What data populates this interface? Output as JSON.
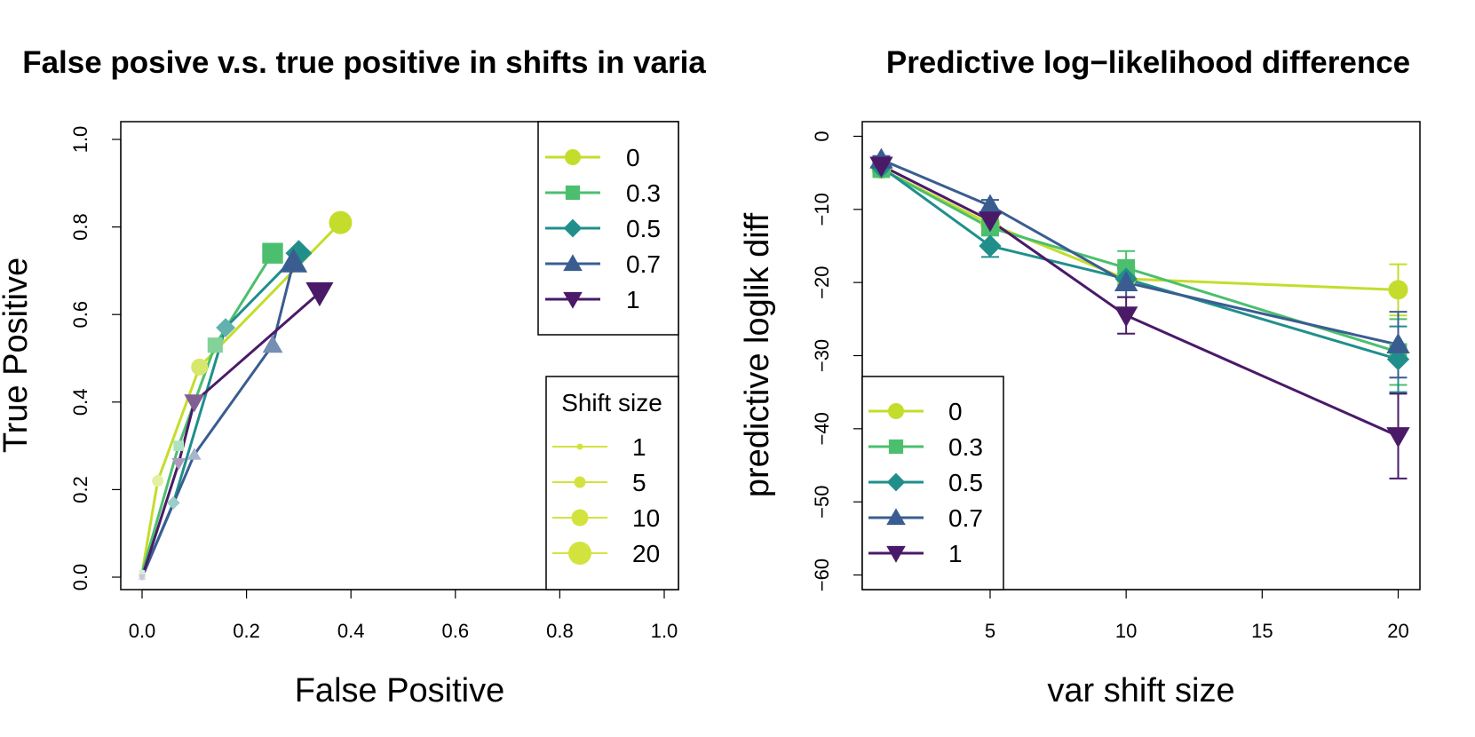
{
  "colors": {
    "s0": "#C4DD2C",
    "s03": "#4CBF6E",
    "s05": "#208F8C",
    "s07": "#3A5D91",
    "s1": "#4A1A68",
    "size_markers": "#D2E33E"
  },
  "chart_data": [
    {
      "type": "line",
      "title": "False posive v.s. true positive in shifts in varia",
      "xlabel": "False Positive",
      "ylabel": "True Positive",
      "xlim": [
        0,
        1
      ],
      "ylim": [
        0,
        1
      ],
      "xticks": [
        "0.0",
        "0.2",
        "0.4",
        "0.6",
        "0.8",
        "1.0"
      ],
      "yticks": [
        "0.0",
        "0.2",
        "0.4",
        "0.6",
        "0.8",
        "1.0"
      ],
      "point_sizes": [
        1,
        5,
        10,
        20
      ],
      "series": [
        {
          "name": "0",
          "marker": "circle",
          "x": [
            0.0,
            0.03,
            0.11,
            0.38
          ],
          "y": [
            0.01,
            0.22,
            0.48,
            0.81
          ]
        },
        {
          "name": "0.3",
          "marker": "square",
          "x": [
            0.0,
            0.07,
            0.14,
            0.25
          ],
          "y": [
            0.01,
            0.3,
            0.53,
            0.74
          ]
        },
        {
          "name": "0.5",
          "marker": "diamond",
          "x": [
            0.0,
            0.06,
            0.16,
            0.3
          ],
          "y": [
            0.0,
            0.17,
            0.57,
            0.74
          ]
        },
        {
          "name": "0.7",
          "marker": "triangle-up",
          "x": [
            0.0,
            0.1,
            0.25,
            0.29
          ],
          "y": [
            0.0,
            0.28,
            0.53,
            0.72
          ]
        },
        {
          "name": "1",
          "marker": "triangle-down",
          "x": [
            0.0,
            0.07,
            0.1,
            0.34
          ],
          "y": [
            0.0,
            0.26,
            0.4,
            0.65
          ]
        }
      ],
      "legend": {
        "placement": "top-right",
        "entries": [
          "0",
          "0.3",
          "0.5",
          "0.7",
          "1"
        ]
      },
      "size_legend": {
        "placement": "bottom-right",
        "title": "Shift size",
        "entries": [
          "1",
          "5",
          "10",
          "20"
        ]
      }
    },
    {
      "type": "line",
      "title": "Predictive log−likelihood difference",
      "xlabel": "var shift size",
      "ylabel": "predictive loglik diff",
      "xlim": [
        0.3,
        20.8
      ],
      "ylim": [
        -62,
        2
      ],
      "xticks": [
        "5",
        "10",
        "15",
        "20"
      ],
      "yticks": [
        "−60",
        "−50",
        "−40",
        "−30",
        "−20",
        "−10",
        "0"
      ],
      "error_bars": true,
      "series": [
        {
          "name": "0",
          "marker": "circle",
          "x": [
            1,
            5,
            10,
            20
          ],
          "y": [
            -4.5,
            -12,
            -19.5,
            -21
          ],
          "err": [
            0.5,
            0.8,
            1.5,
            3.5
          ]
        },
        {
          "name": "0.3",
          "marker": "square",
          "x": [
            1,
            5,
            10,
            20
          ],
          "y": [
            -4.5,
            -12.5,
            -18,
            -29.5
          ],
          "err": [
            0.5,
            0.8,
            2.3,
            4.5
          ]
        },
        {
          "name": "0.5",
          "marker": "diamond",
          "x": [
            1,
            5,
            10,
            20
          ],
          "y": [
            -4.2,
            -15,
            -19.5,
            -30.5
          ],
          "err": [
            0.5,
            1.5,
            1.5,
            4.5
          ]
        },
        {
          "name": "0.7",
          "marker": "triangle-up",
          "x": [
            1,
            5,
            10,
            20
          ],
          "y": [
            -3.2,
            -9.5,
            -20,
            -28.5
          ],
          "err": [
            0.5,
            0.8,
            2,
            4.5
          ]
        },
        {
          "name": "1",
          "marker": "triangle-down",
          "x": [
            1,
            5,
            10,
            20
          ],
          "y": [
            -4,
            -11.5,
            -24.5,
            -41
          ],
          "err": [
            0.5,
            0.8,
            2.5,
            5.8
          ]
        }
      ],
      "legend": {
        "placement": "bottom-left",
        "entries": [
          "0",
          "0.3",
          "0.5",
          "0.7",
          "1"
        ]
      }
    }
  ]
}
